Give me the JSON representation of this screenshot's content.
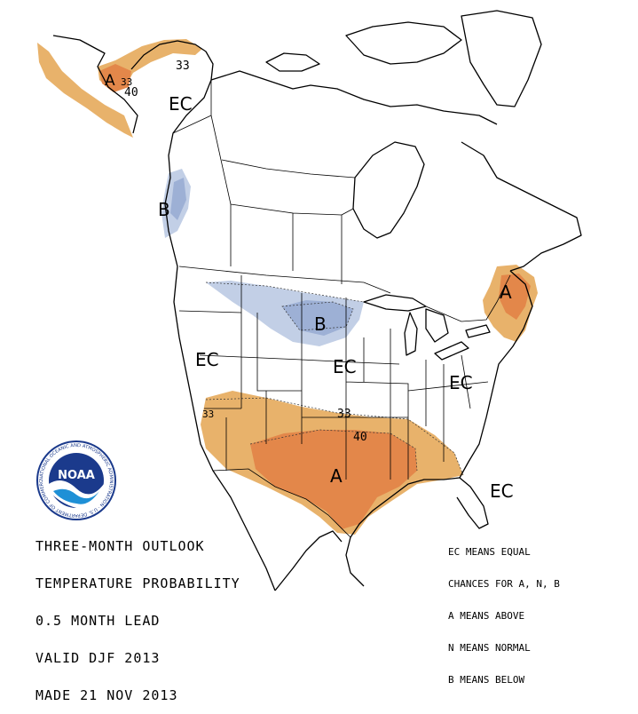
{
  "title_lines": [
    "THREE-MONTH OUTLOOK",
    "TEMPERATURE PROBABILITY",
    "0.5 MONTH LEAD",
    "VALID DJF 2013",
    "MADE 21 NOV 2013"
  ],
  "legend_lines": [
    "EC MEANS EQUAL",
    "CHANCES FOR A, N, B",
    "A MEANS ABOVE",
    "N MEANS NORMAL",
    "B MEANS BELOW"
  ],
  "logo": {
    "text": "NOAA",
    "ring_text": "NATIONAL OCEANIC AND ATMOSPHERIC ADMINISTRATION · U.S. DEPARTMENT OF COMMERCE"
  },
  "map_labels": {
    "ec_alaska": "EC",
    "ec_west": "EC",
    "ec_central": "EC",
    "ec_east": "EC",
    "ec_southeast": "EC",
    "a_alaska": "A",
    "a_northeast": "A",
    "a_south": "A",
    "b_northwest": "B",
    "b_northplains": "B"
  },
  "contour_labels": {
    "alaska_33": "33",
    "alaska_40": "40",
    "alaska_33b": "33",
    "south_33": "33",
    "south_33b": "33",
    "south_40": "40"
  },
  "colors": {
    "above_light": "#E8B26B",
    "above_dark": "#E3874A",
    "below_light": "#C2CFE6",
    "below_mid": "#9DB0D5"
  }
}
